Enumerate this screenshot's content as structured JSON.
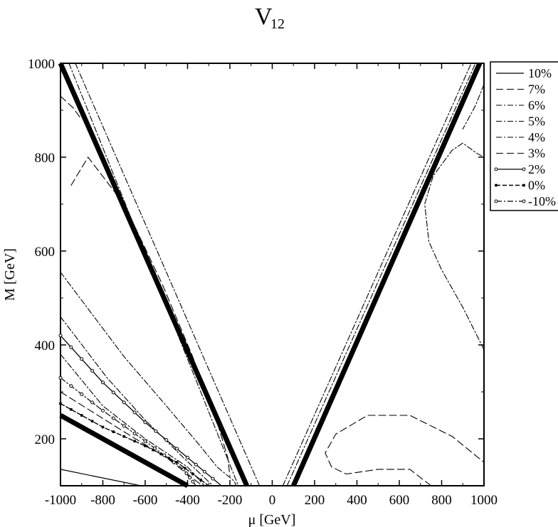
{
  "chart_data": {
    "type": "line",
    "title": "V",
    "title_subscript": "12",
    "xlabel": "μ [GeV]",
    "ylabel": "M [GeV]",
    "xlim": [
      -1000,
      1000
    ],
    "ylim": [
      100,
      1000
    ],
    "xticks": [
      -1000,
      -800,
      -600,
      -400,
      -200,
      0,
      200,
      400,
      600,
      800,
      1000
    ],
    "yticks": [
      200,
      400,
      600,
      800,
      1000
    ],
    "xtick_labels": [
      "-1000",
      "-800",
      "-600",
      "-400",
      "-200",
      "0",
      "200",
      "400",
      "600",
      "800",
      "1000"
    ],
    "ytick_labels": [
      "200",
      "400",
      "600",
      "800",
      "1000"
    ],
    "grid": false,
    "legend_position": "right",
    "series": [
      {
        "name": "10%",
        "style": "solid",
        "x": [
          -1000,
          -620
        ],
        "y": [
          135,
          100
        ]
      },
      {
        "name": "7%",
        "style": "dash",
        "x": [
          -950,
          -870,
          -700,
          -520,
          -380,
          -270,
          -210,
          -200
        ],
        "y": [
          740,
          800,
          700,
          530,
          380,
          250,
          160,
          120
        ]
      },
      {
        "name": "6%",
        "style": "dash-dot",
        "x": [
          -1000,
          -700,
          -500,
          -350,
          -260,
          -180,
          -170
        ],
        "y": [
          555,
          375,
          270,
          190,
          140,
          110,
          100
        ]
      },
      {
        "name": "5%",
        "style": "dash-dot",
        "x": [
          -1000,
          -780,
          -600,
          -420,
          -280
        ],
        "y": [
          460,
          330,
          240,
          160,
          100
        ]
      },
      {
        "name": "4%",
        "style": "dash-dot",
        "x": [
          -1000,
          -800,
          -600,
          -400,
          -320
        ],
        "y": [
          380,
          270,
          200,
          140,
          100
        ]
      },
      {
        "name": "3%",
        "style": "dash",
        "x": [
          -1000,
          -700,
          -500,
          -330
        ],
        "y": [
          300,
          215,
          160,
          100
        ]
      },
      {
        "name": "2%",
        "style": "circle-line",
        "x": [
          -1000,
          -800,
          -600,
          -400,
          -240
        ],
        "y": [
          420,
          320,
          235,
          160,
          100
        ]
      },
      {
        "name": "0%",
        "style": "square-dash",
        "x": [
          -1000,
          -800,
          -600,
          -450,
          -300
        ],
        "y": [
          275,
          225,
          185,
          150,
          100
        ]
      },
      {
        "name": "-10%",
        "style": "circle-dashdot",
        "x": [
          -1000,
          -800,
          -600,
          -420,
          -360
        ],
        "y": [
          330,
          260,
          195,
          135,
          100
        ]
      },
      {
        "name": "",
        "style": "thick",
        "x": [
          -1000,
          -120
        ],
        "y": [
          1000,
          100
        ]
      },
      {
        "name": "",
        "style": "thick",
        "x": [
          -1000,
          -400
        ],
        "y": [
          250,
          100
        ]
      },
      {
        "name": "",
        "style": "thick",
        "x": [
          100,
          980
        ],
        "y": [
          100,
          1000
        ]
      },
      {
        "name": "",
        "style": "dash-dot",
        "x": [
          -960,
          -160
        ],
        "y": [
          1000,
          100
        ]
      },
      {
        "name": "",
        "style": "dash-dot",
        "x": [
          -930,
          -60
        ],
        "y": [
          1000,
          100
        ]
      },
      {
        "name": "",
        "style": "dash-dot",
        "x": [
          50,
          940
        ],
        "y": [
          100,
          1000
        ]
      },
      {
        "name": "",
        "style": "dash-dot",
        "x": [
          70,
          960
        ],
        "y": [
          100,
          1000
        ]
      },
      {
        "name": "",
        "style": "dash",
        "x": [
          -1000,
          -940,
          -900
        ],
        "y": [
          930,
          905,
          880
        ]
      },
      {
        "name": "",
        "style": "dash-dot",
        "x": [
          1000,
          960,
          900
        ],
        "y": [
          955,
          910,
          860
        ]
      },
      {
        "name": "",
        "style": "dash-dot",
        "x": [
          1000,
          900,
          800,
          740,
          720,
          760,
          850,
          900,
          960,
          1000
        ],
        "y": [
          390,
          480,
          560,
          620,
          700,
          760,
          815,
          830,
          810,
          800
        ]
      },
      {
        "name": "",
        "style": "dash",
        "x": [
          750,
          650,
          500,
          350,
          280,
          250,
          300,
          450,
          650,
          850,
          1000
        ],
        "y": [
          100,
          135,
          135,
          125,
          140,
          170,
          210,
          250,
          250,
          205,
          150
        ]
      }
    ]
  }
}
